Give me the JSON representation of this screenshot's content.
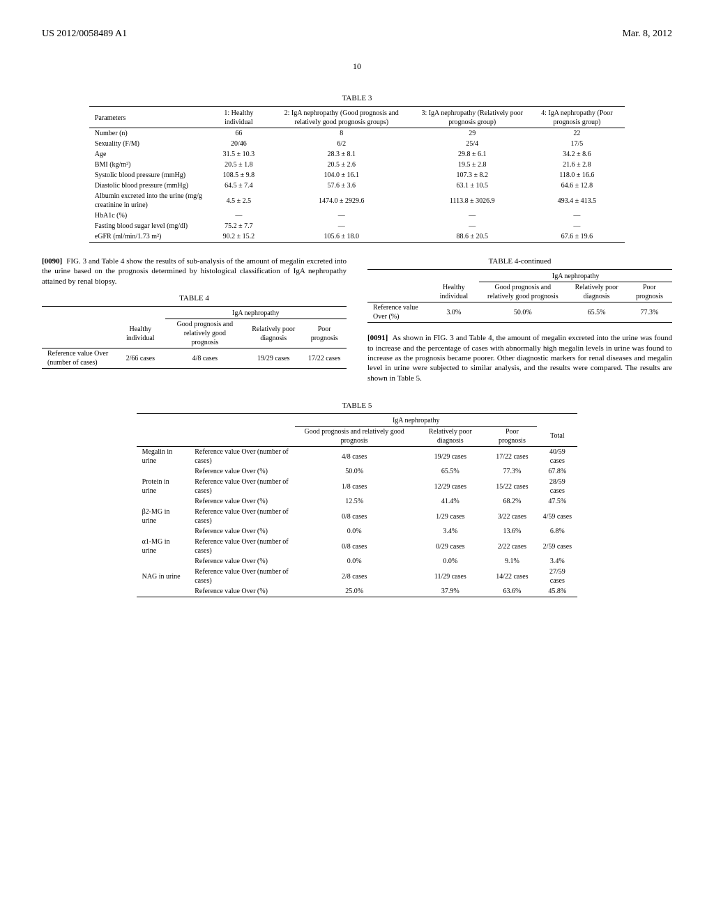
{
  "header": {
    "left": "US 2012/0058489 A1",
    "right": "Mar. 8, 2012"
  },
  "pageNumber": "10",
  "table3": {
    "caption": "TABLE 3",
    "columns": [
      "Parameters",
      "1: Healthy individual",
      "2: IgA nephropathy (Good prognosis and relatively good prognosis groups)",
      "3: IgA nephropathy (Relatively poor prognosis group)",
      "4: IgA nephropathy (Poor prognosis group)"
    ],
    "rows": [
      [
        "Number (n)",
        "66",
        "8",
        "29",
        "22"
      ],
      [
        "Sexuality (F/M)",
        "20/46",
        "6/2",
        "25/4",
        "17/5"
      ],
      [
        "Age",
        "31.5 ± 10.3",
        "28.3 ± 8.1",
        "29.8 ± 6.1",
        "34.2 ± 8.6"
      ],
      [
        "BMI (kg/m²)",
        "20.5 ± 1.8",
        "20.5 ± 2.6",
        "19.5 ± 2.8",
        "21.6 ± 2.8"
      ],
      [
        "Systolic blood pressure (mmHg)",
        "108.5 ± 9.8",
        "104.0 ± 16.1",
        "107.3 ± 8.2",
        "118.0 ± 16.6"
      ],
      [
        "Diastolic blood pressure (mmHg)",
        "64.5 ± 7.4",
        "57.6 ± 3.6",
        "63.1 ± 10.5",
        "64.6 ± 12.8"
      ],
      [
        "Albumin excreted into the urine (mg/g creatinine in urine)",
        "4.5 ± 2.5",
        "1474.0 ± 2929.6",
        "1113.8 ± 3026.9",
        "493.4 ± 413.5"
      ],
      [
        "HbA1c (%)",
        "—",
        "—",
        "—",
        "—"
      ],
      [
        "Fasting blood sugar level (mg/dl)",
        "75.2 ± 7.7",
        "—",
        "—",
        "—"
      ],
      [
        "eGFR (ml/min/1.73 m²)",
        "90.2 ± 15.2",
        "105.6 ± 18.0",
        "88.6 ± 20.5",
        "67.6 ± 19.6"
      ]
    ]
  },
  "para90": "FIG. 3 and Table 4 show the results of sub-analysis of the amount of megalin excreted into the urine based on the prognosis determined by histological classification of IgA nephropathy attained by renal biopsy.",
  "table4": {
    "caption": "TABLE 4",
    "spanLabel": "IgA nephropathy",
    "columns": [
      "",
      "Healthy individual",
      "Good prognosis and relatively good prognosis",
      "Relatively poor diagnosis",
      "Poor prognosis"
    ],
    "rowLabel": "Reference value Over (number of cases)",
    "row": [
      "2/66 cases",
      "4/8 cases",
      "19/29 cases",
      "17/22 cases"
    ]
  },
  "table4cont": {
    "caption": "TABLE 4-continued",
    "spanLabel": "IgA nephropathy",
    "columns": [
      "",
      "Healthy individual",
      "Good prognosis and relatively good prognosis",
      "Relatively poor diagnosis",
      "Poor prognosis"
    ],
    "rowLabel": "Reference value Over (%)",
    "row": [
      "3.0%",
      "50.0%",
      "65.5%",
      "77.3%"
    ]
  },
  "para91": "As shown in FIG. 3 and Table 4, the amount of megalin excreted into the urine was found to increase and the percentage of cases with abnormally high megalin levels in urine was found to increase as the prognosis became poorer. Other diagnostic markers for renal diseases and megalin level in urine were subjected to similar analysis, and the results were compared. The results are shown in Table 5.",
  "table5": {
    "caption": "TABLE 5",
    "spanLabel": "IgA nephropathy",
    "columns": [
      "",
      "",
      "Good prognosis and relatively good prognosis",
      "Relatively poor diagnosis",
      "Poor prognosis",
      "Total"
    ],
    "groups": [
      {
        "name": "Megalin in urine",
        "rows": [
          [
            "Reference value Over (number of cases)",
            "4/8 cases",
            "19/29 cases",
            "17/22 cases",
            "40/59 cases"
          ],
          [
            "Reference value Over (%)",
            "50.0%",
            "65.5%",
            "77.3%",
            "67.8%"
          ]
        ]
      },
      {
        "name": "Protein in urine",
        "rows": [
          [
            "Reference value Over (number of cases)",
            "1/8 cases",
            "12/29 cases",
            "15/22 cases",
            "28/59 cases"
          ],
          [
            "Reference value Over (%)",
            "12.5%",
            "41.4%",
            "68.2%",
            "47.5%"
          ]
        ]
      },
      {
        "name": "β2-MG in urine",
        "rows": [
          [
            "Reference value Over (number of cases)",
            "0/8 cases",
            "1/29 cases",
            "3/22 cases",
            "4/59 cases"
          ],
          [
            "Reference value Over (%)",
            "0.0%",
            "3.4%",
            "13.6%",
            "6.8%"
          ]
        ]
      },
      {
        "name": "α1-MG in urine",
        "rows": [
          [
            "Reference value Over (number of cases)",
            "0/8 cases",
            "0/29 cases",
            "2/22 cases",
            "2/59 cases"
          ],
          [
            "Reference value Over (%)",
            "0.0%",
            "0.0%",
            "9.1%",
            "3.4%"
          ]
        ]
      },
      {
        "name": "NAG in urine",
        "rows": [
          [
            "Reference value Over (number of cases)",
            "2/8 cases",
            "11/29 cases",
            "14/22 cases",
            "27/59 cases"
          ],
          [
            "Reference value Over (%)",
            "25.0%",
            "37.9%",
            "63.6%",
            "45.8%"
          ]
        ]
      }
    ]
  }
}
